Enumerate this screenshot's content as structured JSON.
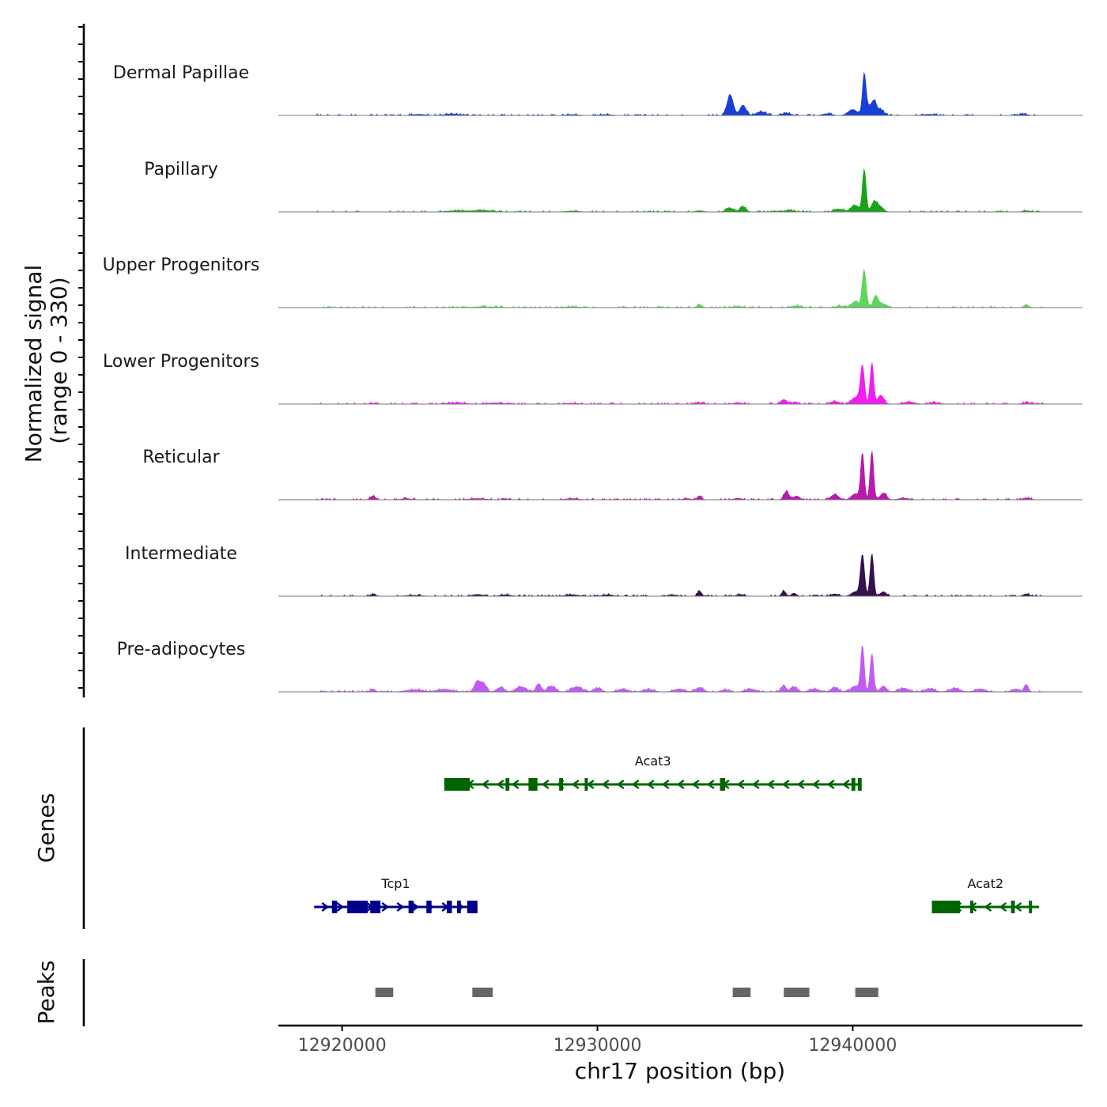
{
  "chart_data": {
    "type": "coverage_tracks",
    "chromosome": "chr17",
    "xlabel": "chr17 position (bp)",
    "xlim": [
      12917500,
      12949000
    ],
    "xticks": [
      12920000,
      12930000,
      12940000
    ],
    "xtick_labels": [
      "12920000",
      "12930000",
      "12940000"
    ],
    "ylabel_line1": "Normalized signal",
    "ylabel_line2": "(range 0 - 330)",
    "ylim": [
      0,
      330
    ],
    "tracks": [
      {
        "name": "Dermal Papillae",
        "color": "#1b3fd6",
        "peaks": [
          [
            12923000,
            8,
            250
          ],
          [
            12924300,
            10,
            300
          ],
          [
            12929000,
            6,
            250
          ],
          [
            12930300,
            6,
            250
          ],
          [
            12935200,
            140,
            120
          ],
          [
            12935700,
            70,
            120
          ],
          [
            12936400,
            25,
            180
          ],
          [
            12937400,
            15,
            180
          ],
          [
            12939000,
            12,
            180
          ],
          [
            12940000,
            40,
            180
          ],
          [
            12940450,
            270,
            70
          ],
          [
            12940650,
            60,
            120
          ],
          [
            12940850,
            85,
            90
          ],
          [
            12941100,
            40,
            120
          ],
          [
            12943000,
            8,
            250
          ],
          [
            12946700,
            10,
            150
          ]
        ]
      },
      {
        "name": "Papillary",
        "color": "#1aa31a",
        "peaks": [
          [
            12924500,
            8,
            400
          ],
          [
            12925500,
            10,
            350
          ],
          [
            12929000,
            6,
            250
          ],
          [
            12934000,
            8,
            150
          ],
          [
            12935200,
            25,
            150
          ],
          [
            12935700,
            35,
            120
          ],
          [
            12937500,
            12,
            180
          ],
          [
            12939500,
            18,
            180
          ],
          [
            12940100,
            45,
            150
          ],
          [
            12940450,
            290,
            70
          ],
          [
            12940850,
            70,
            120
          ],
          [
            12941100,
            30,
            120
          ],
          [
            12946800,
            8,
            150
          ]
        ]
      },
      {
        "name": "Upper Progenitors",
        "color": "#5ed65e",
        "peaks": [
          [
            12925500,
            6,
            400
          ],
          [
            12929000,
            6,
            300
          ],
          [
            12934000,
            20,
            100
          ],
          [
            12935500,
            8,
            200
          ],
          [
            12937800,
            12,
            200
          ],
          [
            12939500,
            10,
            180
          ],
          [
            12940100,
            40,
            150
          ],
          [
            12940450,
            250,
            80
          ],
          [
            12940900,
            80,
            100
          ],
          [
            12941200,
            25,
            150
          ],
          [
            12946800,
            18,
            100
          ]
        ]
      },
      {
        "name": "Lower Progenitors",
        "color": "#f01ef0",
        "peaks": [
          [
            12921200,
            6,
            150
          ],
          [
            12924500,
            8,
            350
          ],
          [
            12926000,
            8,
            300
          ],
          [
            12929000,
            6,
            250
          ],
          [
            12934000,
            8,
            150
          ],
          [
            12935500,
            10,
            150
          ],
          [
            12937300,
            30,
            120
          ],
          [
            12937700,
            10,
            150
          ],
          [
            12939300,
            18,
            180
          ],
          [
            12940100,
            45,
            150
          ],
          [
            12940380,
            260,
            80
          ],
          [
            12940750,
            280,
            70
          ],
          [
            12941100,
            60,
            120
          ],
          [
            12942200,
            15,
            200
          ],
          [
            12943200,
            10,
            200
          ],
          [
            12946800,
            10,
            150
          ]
        ]
      },
      {
        "name": "Reticular",
        "color": "#b81aaa",
        "peaks": [
          [
            12921200,
            25,
            100
          ],
          [
            12922500,
            8,
            180
          ],
          [
            12925300,
            8,
            300
          ],
          [
            12929000,
            8,
            250
          ],
          [
            12933500,
            8,
            150
          ],
          [
            12934000,
            20,
            100
          ],
          [
            12935500,
            10,
            150
          ],
          [
            12937400,
            55,
            100
          ],
          [
            12937800,
            25,
            120
          ],
          [
            12939300,
            35,
            150
          ],
          [
            12940100,
            40,
            150
          ],
          [
            12940380,
            310,
            70
          ],
          [
            12940750,
            330,
            70
          ],
          [
            12941200,
            45,
            120
          ],
          [
            12942000,
            10,
            200
          ],
          [
            12946800,
            12,
            150
          ]
        ]
      },
      {
        "name": "Intermediate",
        "color": "#36104f",
        "peaks": [
          [
            12921200,
            12,
            120
          ],
          [
            12922800,
            6,
            300
          ],
          [
            12925300,
            12,
            200
          ],
          [
            12926400,
            10,
            200
          ],
          [
            12929000,
            10,
            250
          ],
          [
            12930400,
            10,
            200
          ],
          [
            12933000,
            8,
            150
          ],
          [
            12934000,
            35,
            80
          ],
          [
            12935600,
            12,
            150
          ],
          [
            12937300,
            35,
            80
          ],
          [
            12937700,
            20,
            100
          ],
          [
            12939300,
            15,
            150
          ],
          [
            12940100,
            30,
            150
          ],
          [
            12940380,
            280,
            80
          ],
          [
            12940750,
            290,
            70
          ],
          [
            12941200,
            30,
            120
          ],
          [
            12946800,
            15,
            120
          ]
        ]
      },
      {
        "name": "Pre-adipocytes",
        "color": "#c05cf5",
        "peaks": [
          [
            12921200,
            20,
            100
          ],
          [
            12922800,
            15,
            300
          ],
          [
            12924000,
            18,
            300
          ],
          [
            12925300,
            75,
            120
          ],
          [
            12925550,
            55,
            100
          ],
          [
            12926200,
            30,
            150
          ],
          [
            12927000,
            35,
            200
          ],
          [
            12927700,
            55,
            100
          ],
          [
            12928200,
            40,
            150
          ],
          [
            12929200,
            35,
            200
          ],
          [
            12930000,
            25,
            150
          ],
          [
            12931000,
            20,
            200
          ],
          [
            12932000,
            18,
            200
          ],
          [
            12933200,
            20,
            200
          ],
          [
            12934000,
            30,
            150
          ],
          [
            12935000,
            15,
            150
          ],
          [
            12936000,
            20,
            200
          ],
          [
            12937300,
            40,
            100
          ],
          [
            12937700,
            35,
            120
          ],
          [
            12938500,
            20,
            200
          ],
          [
            12939300,
            30,
            150
          ],
          [
            12940100,
            40,
            150
          ],
          [
            12940380,
            310,
            70
          ],
          [
            12940750,
            260,
            70
          ],
          [
            12941200,
            40,
            120
          ],
          [
            12942000,
            25,
            200
          ],
          [
            12943000,
            20,
            200
          ],
          [
            12944000,
            25,
            200
          ],
          [
            12945000,
            20,
            200
          ],
          [
            12946400,
            20,
            150
          ],
          [
            12946800,
            50,
            80
          ]
        ]
      }
    ],
    "genes": [
      {
        "name": "Acat3",
        "strand": "-",
        "color": "#006400",
        "row": 0,
        "start": 12924000,
        "end": 12940350,
        "exons": [
          [
            12924000,
            12925000
          ],
          [
            12926400,
            12926550
          ],
          [
            12927300,
            12927650
          ],
          [
            12928500,
            12928650
          ],
          [
            12929500,
            12929600
          ],
          [
            12934800,
            12935000
          ],
          [
            12939950,
            12940100
          ],
          [
            12940200,
            12940350
          ]
        ]
      },
      {
        "name": "Tcp1",
        "strand": "+",
        "color": "#00008b",
        "row": 1,
        "start": 12918900,
        "end": 12925300,
        "exons": [
          [
            12919600,
            12919800
          ],
          [
            12920200,
            12921000
          ],
          [
            12921100,
            12921500
          ],
          [
            12922600,
            12922800
          ],
          [
            12923300,
            12923500
          ],
          [
            12924100,
            12924300
          ],
          [
            12924500,
            12924650
          ],
          [
            12924900,
            12925300
          ]
        ]
      },
      {
        "name": "Acat2",
        "strand": "-",
        "color": "#006400",
        "row": 1,
        "start": 12943100,
        "end": 12947300,
        "exons": [
          [
            12943100,
            12944200
          ],
          [
            12944600,
            12944700
          ],
          [
            12946200,
            12946350
          ],
          [
            12946900,
            12947000
          ]
        ]
      }
    ],
    "genes_label": "Genes",
    "peaks_label": "Peaks",
    "peaks_color": "#666666",
    "peak_regions": [
      [
        12921300,
        12922000
      ],
      [
        12925100,
        12925900
      ],
      [
        12935300,
        12936000
      ],
      [
        12937300,
        12938300
      ],
      [
        12940100,
        12941000
      ]
    ]
  }
}
